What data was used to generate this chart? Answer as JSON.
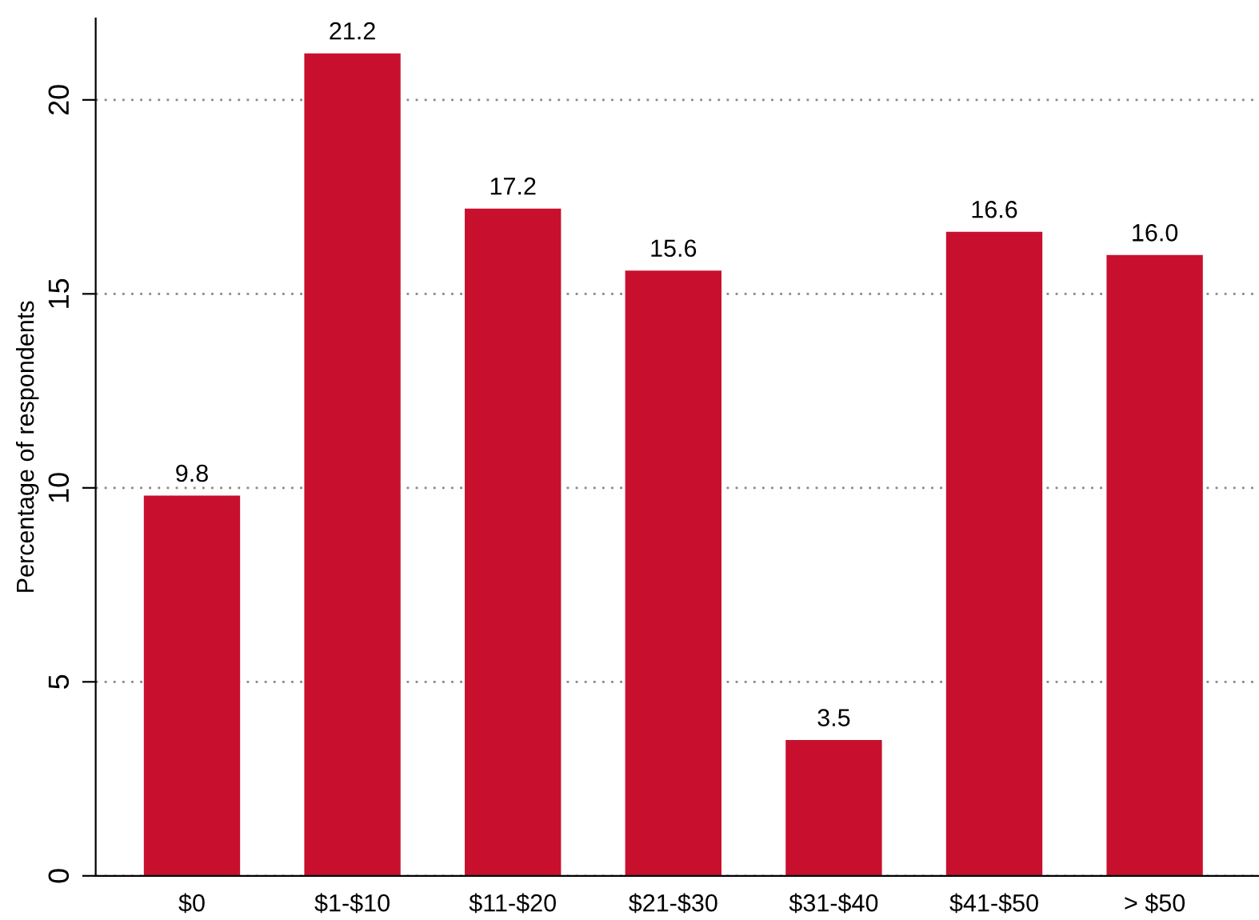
{
  "chart_data": {
    "type": "bar",
    "ylabel": "Percentage of respondents",
    "categories": [
      "$0",
      "$1-$10",
      "$11-$20",
      "$21-$30",
      "$31-$40",
      "$41-$50",
      "> $50"
    ],
    "values": [
      9.8,
      21.2,
      17.2,
      15.6,
      3.5,
      16.6,
      16.0
    ],
    "value_labels": [
      "9.8",
      "21.2",
      "17.2",
      "15.6",
      "3.5",
      "16.6",
      "16.0"
    ],
    "color": "#c8102e",
    "ylim": [
      0,
      22.1
    ],
    "yticks": [
      0,
      5,
      10,
      15,
      20
    ],
    "grid": "y",
    "legend": false
  }
}
